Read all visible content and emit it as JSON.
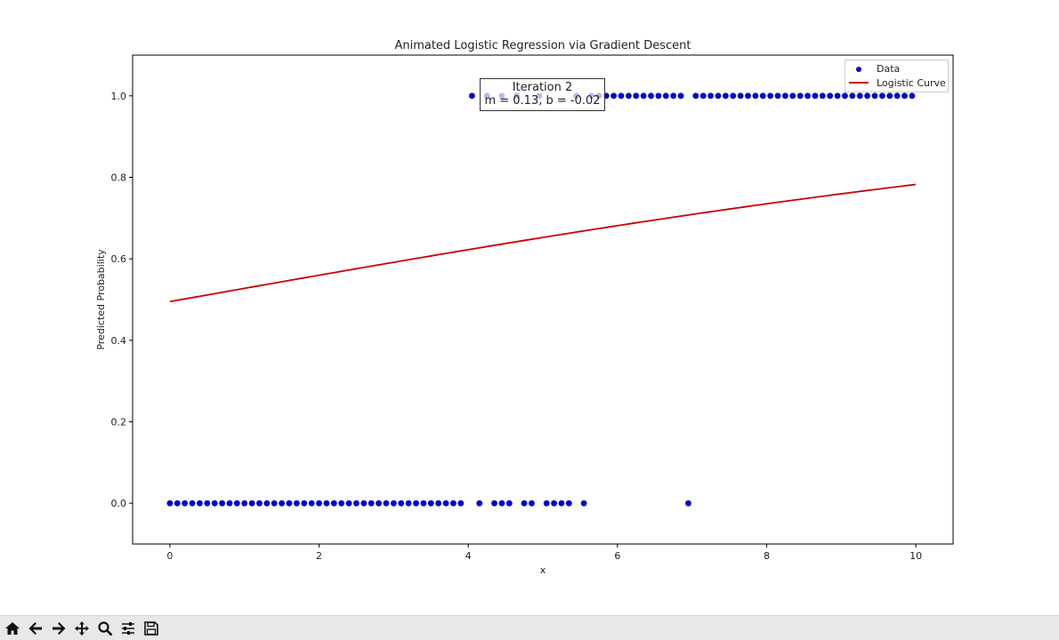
{
  "chart_data": {
    "type": "scatter",
    "title": "Animated Logistic Regression via Gradient Descent",
    "xlabel": "x",
    "ylabel": "Predicted Probability",
    "xlim": [
      -0.5,
      10.5
    ],
    "ylim": [
      -0.1,
      1.1
    ],
    "xticks": [
      0,
      2,
      4,
      6,
      8,
      10
    ],
    "xtick_labels": [
      "0",
      "2",
      "4",
      "6",
      "8",
      "10"
    ],
    "yticks": [
      0.0,
      0.2,
      0.4,
      0.6,
      0.8,
      1.0
    ],
    "ytick_labels": [
      "0.0",
      "0.2",
      "0.4",
      "0.6",
      "0.8",
      "1.0"
    ],
    "grid": false,
    "legend_position": "top-right",
    "series": [
      {
        "name": "Data",
        "kind": "scatter",
        "color": "#0000cc",
        "points": [
          [
            0.0,
            0
          ],
          [
            0.1,
            0
          ],
          [
            0.2,
            0
          ],
          [
            0.3,
            0
          ],
          [
            0.4,
            0
          ],
          [
            0.5,
            0
          ],
          [
            0.6,
            0
          ],
          [
            0.7,
            0
          ],
          [
            0.8,
            0
          ],
          [
            0.9,
            0
          ],
          [
            1.0,
            0
          ],
          [
            1.1,
            0
          ],
          [
            1.2,
            0
          ],
          [
            1.3,
            0
          ],
          [
            1.4,
            0
          ],
          [
            1.5,
            0
          ],
          [
            1.6,
            0
          ],
          [
            1.7,
            0
          ],
          [
            1.8,
            0
          ],
          [
            1.9,
            0
          ],
          [
            2.0,
            0
          ],
          [
            2.1,
            0
          ],
          [
            2.2,
            0
          ],
          [
            2.3,
            0
          ],
          [
            2.4,
            0
          ],
          [
            2.5,
            0
          ],
          [
            2.6,
            0
          ],
          [
            2.7,
            0
          ],
          [
            2.8,
            0
          ],
          [
            2.9,
            0
          ],
          [
            3.0,
            0
          ],
          [
            3.1,
            0
          ],
          [
            3.2,
            0
          ],
          [
            3.3,
            0
          ],
          [
            3.4,
            0
          ],
          [
            3.5,
            0
          ],
          [
            3.6,
            0
          ],
          [
            3.7,
            0
          ],
          [
            3.8,
            0
          ],
          [
            3.9,
            0
          ],
          [
            4.15,
            0
          ],
          [
            4.35,
            0
          ],
          [
            4.45,
            0
          ],
          [
            4.55,
            0
          ],
          [
            4.75,
            0
          ],
          [
            4.85,
            0
          ],
          [
            5.05,
            0
          ],
          [
            5.15,
            0
          ],
          [
            5.25,
            0
          ],
          [
            5.35,
            0
          ],
          [
            5.55,
            0
          ],
          [
            6.95,
            0
          ],
          [
            4.05,
            1
          ],
          [
            4.25,
            1
          ],
          [
            4.45,
            1
          ],
          [
            4.65,
            1
          ],
          [
            4.95,
            1
          ],
          [
            5.45,
            1
          ],
          [
            5.65,
            1
          ],
          [
            5.75,
            1
          ],
          [
            5.85,
            1
          ],
          [
            5.95,
            1
          ],
          [
            6.05,
            1
          ],
          [
            6.15,
            1
          ],
          [
            6.25,
            1
          ],
          [
            6.35,
            1
          ],
          [
            6.45,
            1
          ],
          [
            6.55,
            1
          ],
          [
            6.65,
            1
          ],
          [
            6.75,
            1
          ],
          [
            6.85,
            1
          ],
          [
            7.05,
            1
          ],
          [
            7.15,
            1
          ],
          [
            7.25,
            1
          ],
          [
            7.35,
            1
          ],
          [
            7.45,
            1
          ],
          [
            7.55,
            1
          ],
          [
            7.65,
            1
          ],
          [
            7.75,
            1
          ],
          [
            7.85,
            1
          ],
          [
            7.95,
            1
          ],
          [
            8.05,
            1
          ],
          [
            8.15,
            1
          ],
          [
            8.25,
            1
          ],
          [
            8.35,
            1
          ],
          [
            8.45,
            1
          ],
          [
            8.55,
            1
          ],
          [
            8.65,
            1
          ],
          [
            8.75,
            1
          ],
          [
            8.85,
            1
          ],
          [
            8.95,
            1
          ],
          [
            9.05,
            1
          ],
          [
            9.15,
            1
          ],
          [
            9.25,
            1
          ],
          [
            9.35,
            1
          ],
          [
            9.45,
            1
          ],
          [
            9.55,
            1
          ],
          [
            9.65,
            1
          ],
          [
            9.75,
            1
          ],
          [
            9.85,
            1
          ],
          [
            9.95,
            1
          ]
        ]
      },
      {
        "name": "Logistic Curve",
        "kind": "line",
        "color": "#cc0000",
        "m": 0.13,
        "b": -0.02,
        "x_range": [
          0,
          10
        ]
      }
    ],
    "annotation": {
      "line1": "Iteration 2",
      "line2": "m = 0.13, b = -0.02"
    }
  },
  "toolbar": {
    "buttons": [
      {
        "name": "home-button",
        "icon": "home-icon"
      },
      {
        "name": "back-button",
        "icon": "arrow-left-icon"
      },
      {
        "name": "forward-button",
        "icon": "arrow-right-icon"
      },
      {
        "name": "pan-button",
        "icon": "move-icon"
      },
      {
        "name": "zoom-button",
        "icon": "magnifier-icon"
      },
      {
        "name": "configure-subplots-button",
        "icon": "sliders-icon"
      },
      {
        "name": "save-button",
        "icon": "floppy-disk-icon"
      }
    ]
  }
}
